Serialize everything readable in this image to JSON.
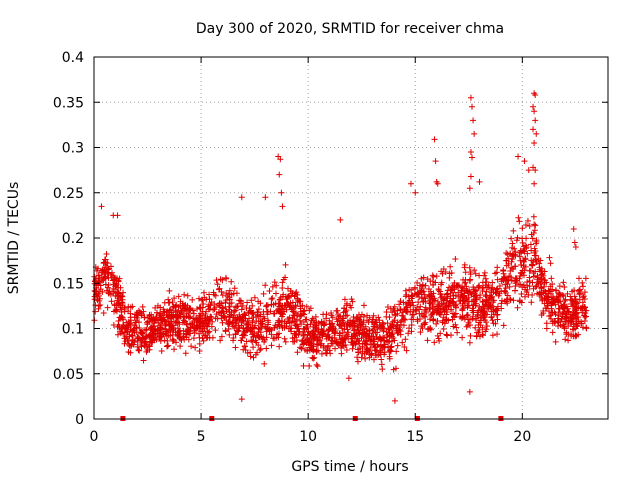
{
  "chart_data": {
    "type": "scatter",
    "title": "Day 300 of 2020, SRMTID for receiver chma",
    "xlabel": "GPS time / hours",
    "ylabel": "SRMTID / TECUs",
    "xlim": [
      0,
      24
    ],
    "ylim": [
      0,
      0.4
    ],
    "x_ticks": [
      0,
      5,
      10,
      15,
      20
    ],
    "x_tick_labels": [
      "0",
      "5",
      "10",
      "15",
      "20"
    ],
    "y_ticks": [
      0,
      0.05,
      0.1,
      0.15,
      0.2,
      0.25,
      0.3,
      0.35,
      0.4
    ],
    "y_tick_labels": [
      "0",
      "0.05",
      "0.1",
      "0.15",
      "0.2",
      "0.25",
      "0.3",
      "0.35",
      "0.4"
    ],
    "grid": true,
    "marker": "plus",
    "series_color": "#e00000",
    "grid_color": "#a0a0a0",
    "baseline_markers_x": [
      1.35,
      5.5,
      12.2,
      15.1,
      19.0
    ],
    "envelope": {
      "x": [
        0,
        0.5,
        1,
        1.5,
        2,
        3,
        4,
        5,
        5.5,
        6,
        7,
        8,
        9,
        10,
        11,
        12,
        13,
        13.5,
        14,
        15,
        16,
        17,
        18,
        18.5,
        19,
        19.5,
        20,
        20.5,
        21,
        22,
        23
      ],
      "mean": [
        0.14,
        0.16,
        0.14,
        0.1,
        0.095,
        0.1,
        0.11,
        0.105,
        0.12,
        0.125,
        0.1,
        0.105,
        0.13,
        0.09,
        0.095,
        0.1,
        0.09,
        0.085,
        0.1,
        0.13,
        0.125,
        0.13,
        0.13,
        0.125,
        0.14,
        0.17,
        0.17,
        0.18,
        0.14,
        0.115,
        0.12
      ],
      "spread": [
        0.035,
        0.04,
        0.04,
        0.035,
        0.035,
        0.035,
        0.035,
        0.035,
        0.04,
        0.04,
        0.04,
        0.045,
        0.05,
        0.035,
        0.035,
        0.035,
        0.035,
        0.035,
        0.04,
        0.045,
        0.045,
        0.05,
        0.05,
        0.045,
        0.05,
        0.05,
        0.05,
        0.06,
        0.045,
        0.04,
        0.035
      ]
    },
    "points_per_hour": 110,
    "outliers": [
      {
        "x": 0.35,
        "y": 0.235
      },
      {
        "x": 0.9,
        "y": 0.225
      },
      {
        "x": 1.1,
        "y": 0.225
      },
      {
        "x": 6.9,
        "y": 0.245
      },
      {
        "x": 8.0,
        "y": 0.245
      },
      {
        "x": 8.6,
        "y": 0.29
      },
      {
        "x": 8.7,
        "y": 0.287
      },
      {
        "x": 8.65,
        "y": 0.27
      },
      {
        "x": 8.75,
        "y": 0.25
      },
      {
        "x": 8.8,
        "y": 0.235
      },
      {
        "x": 11.5,
        "y": 0.22
      },
      {
        "x": 14.8,
        "y": 0.26
      },
      {
        "x": 15.0,
        "y": 0.25
      },
      {
        "x": 15.9,
        "y": 0.309
      },
      {
        "x": 15.95,
        "y": 0.285
      },
      {
        "x": 16.0,
        "y": 0.262
      },
      {
        "x": 16.05,
        "y": 0.26
      },
      {
        "x": 17.6,
        "y": 0.355
      },
      {
        "x": 17.65,
        "y": 0.345
      },
      {
        "x": 17.7,
        "y": 0.33
      },
      {
        "x": 17.75,
        "y": 0.315
      },
      {
        "x": 17.6,
        "y": 0.295
      },
      {
        "x": 17.65,
        "y": 0.289
      },
      {
        "x": 17.6,
        "y": 0.268
      },
      {
        "x": 17.55,
        "y": 0.255
      },
      {
        "x": 18.0,
        "y": 0.262
      },
      {
        "x": 17.55,
        "y": 0.03
      },
      {
        "x": 19.8,
        "y": 0.29
      },
      {
        "x": 20.1,
        "y": 0.285
      },
      {
        "x": 20.3,
        "y": 0.275
      },
      {
        "x": 20.55,
        "y": 0.36
      },
      {
        "x": 20.6,
        "y": 0.358
      },
      {
        "x": 20.5,
        "y": 0.345
      },
      {
        "x": 20.55,
        "y": 0.34
      },
      {
        "x": 20.6,
        "y": 0.33
      },
      {
        "x": 20.5,
        "y": 0.32
      },
      {
        "x": 20.65,
        "y": 0.315
      },
      {
        "x": 20.55,
        "y": 0.305
      },
      {
        "x": 20.5,
        "y": 0.278
      },
      {
        "x": 20.6,
        "y": 0.275
      },
      {
        "x": 20.55,
        "y": 0.26
      },
      {
        "x": 22.4,
        "y": 0.21
      },
      {
        "x": 22.45,
        "y": 0.195
      },
      {
        "x": 22.5,
        "y": 0.19
      },
      {
        "x": 6.9,
        "y": 0.022
      },
      {
        "x": 14.05,
        "y": 0.02
      },
      {
        "x": 11.9,
        "y": 0.045
      }
    ]
  }
}
